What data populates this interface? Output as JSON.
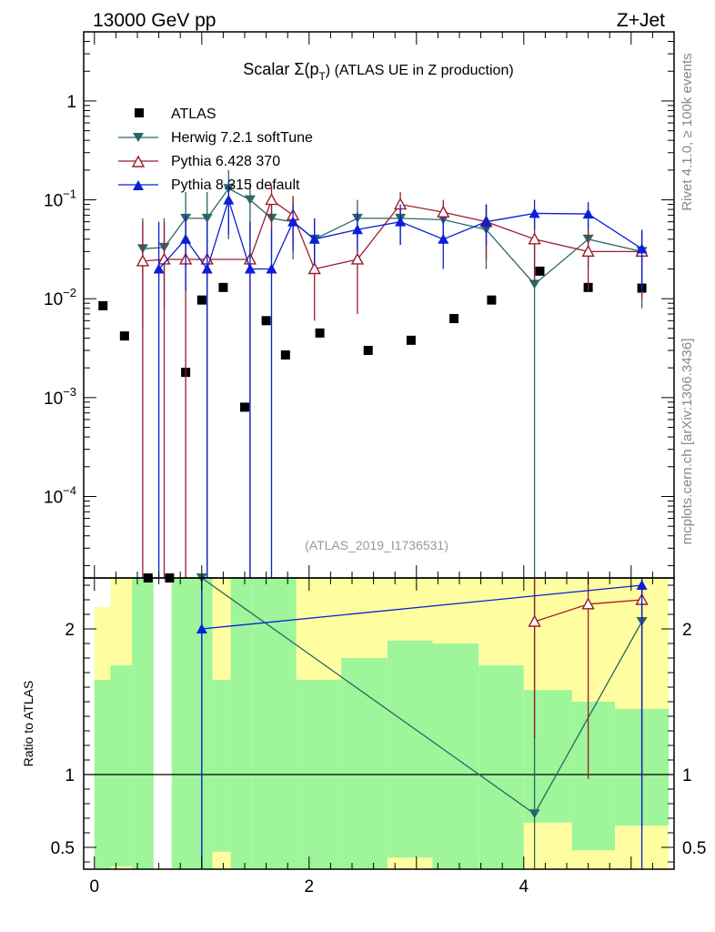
{
  "header": {
    "left": "13000 GeV pp",
    "right": "Z+Jet"
  },
  "side": {
    "top": "Rivet 4.1.0, ≥ 100k events",
    "bottom": "mcplots.cern.ch [arXiv:1306.3436]"
  },
  "colors": {
    "atlas": "#000000",
    "herwig": "#2a6666",
    "pythia6": "#9b1c2e",
    "pythia8": "#0a1fd6",
    "green": "#9ef59a",
    "yellow": "#fefea0"
  },
  "chart_data": {
    "type": "scatter",
    "title": "Scalar Σ(p_T) (ATLAS UE in Z production)",
    "title_main": "Scalar Σ(p",
    "title_sub": "T",
    "title_rest": ") (ATLAS UE in Z production)",
    "watermark": "(ATLAS_2019_I1736531)",
    "xlim": [
      -0.1,
      5.4
    ],
    "ylim": [
      1.5e-05,
      5
    ],
    "y_ticks": [
      {
        "v": 1,
        "base": "1",
        "exp": ""
      },
      {
        "v": 0.1,
        "base": "10",
        "exp": "−1"
      },
      {
        "v": 0.01,
        "base": "10",
        "exp": "−2"
      },
      {
        "v": 0.001,
        "base": "10",
        "exp": "−3"
      },
      {
        "v": 0.0001,
        "base": "10",
        "exp": "−4"
      }
    ],
    "x_ticks": [
      0,
      2,
      4
    ],
    "ratio": {
      "ylabel": "Ratio to ATLAS",
      "ylim": [
        0.35,
        2.35
      ],
      "y_ticks": [
        0.5,
        1,
        2
      ],
      "x_ticks_labels": [
        "0",
        "2",
        "4"
      ],
      "bins": [
        0.0,
        0.15,
        0.35,
        0.55,
        0.72,
        0.9,
        1.1,
        1.27,
        1.47,
        1.65,
        1.88,
        2.3,
        2.73,
        3.15,
        3.58,
        4.0,
        4.45,
        4.85,
        5.35
      ],
      "green": [
        [
          0.35,
          1.65
        ],
        [
          0.37,
          1.75
        ],
        [
          0.35,
          2.35
        ],
        [
          null,
          null
        ],
        [
          0.35,
          2.35
        ],
        [
          0.35,
          2.35
        ],
        [
          0.35,
          1.65
        ],
        [
          0.35,
          2.35
        ],
        [
          0.35,
          2.35
        ],
        [
          0.35,
          2.35
        ],
        [
          0.35,
          1.65
        ],
        [
          0.35,
          1.8
        ],
        [
          0.35,
          1.92
        ],
        [
          0.35,
          1.9
        ],
        [
          0.35,
          1.75
        ],
        [
          0.35,
          1.58
        ],
        [
          0.35,
          1.5
        ],
        [
          0.35,
          1.45
        ],
        [
          0.35,
          1.4
        ]
      ],
      "yellow": [
        [
          0.35,
          2.15
        ],
        [
          0.35,
          2.35
        ],
        [
          0.35,
          2.35
        ],
        [
          null,
          null
        ],
        [
          0.35,
          2.35
        ],
        [
          0.35,
          2.35
        ],
        [
          0.35,
          2.35
        ],
        [
          0.35,
          2.35
        ],
        [
          0.35,
          2.35
        ],
        [
          0.35,
          2.35
        ],
        [
          0.35,
          2.35
        ],
        [
          0.35,
          2.35
        ],
        [
          0.35,
          2.35
        ],
        [
          0.35,
          2.35
        ],
        [
          0.35,
          2.35
        ],
        [
          0.35,
          2.35
        ],
        [
          0.35,
          2.35
        ],
        [
          0.35,
          2.35
        ],
        [
          0.35,
          2.35
        ]
      ],
      "yellow_low": [
        0.35,
        0.35,
        0.35,
        null,
        0.35,
        0.35,
        0.47,
        0.35,
        0.35,
        0.35,
        0.35,
        0.35,
        0.43,
        0.35,
        0.35,
        0.67,
        0.48,
        0.65,
        0.35
      ],
      "series": [
        {
          "name": "Herwig 7.2.1 softTune",
          "x": [
            1.0,
            4.1,
            5.1
          ],
          "y": [
            2.35,
            0.73,
            2.05
          ],
          "err": [
            [
              0.35,
              2.35
            ],
            [
              0.35,
              2.35
            ],
            [
              0.63,
              2.35
            ]
          ]
        },
        {
          "name": "Pythia 6.428 370",
          "x": [
            4.1,
            4.6,
            5.1
          ],
          "y": [
            2.05,
            2.17,
            2.2
          ],
          "err": [
            [
              1.25,
              2.35
            ],
            [
              0.97,
              2.35
            ],
            [
              0.98,
              2.35
            ]
          ]
        },
        {
          "name": "Pythia 8.315 default",
          "x": [
            1.0,
            5.1
          ],
          "y": [
            2.0,
            2.3
          ],
          "err": [
            [
              0.35,
              2.35
            ],
            [
              0.35,
              2.35
            ]
          ]
        }
      ]
    },
    "series": [
      {
        "name": "ATLAS",
        "marker": "square",
        "x": [
          0.08,
          0.28,
          0.5,
          0.7,
          0.85,
          1.0,
          1.2,
          1.4,
          1.6,
          1.78,
          2.1,
          2.55,
          2.95,
          3.35,
          3.7,
          4.15,
          4.6,
          5.1
        ],
        "y": [
          0.0085,
          0.0042,
          1.1e-05,
          1.1e-05,
          0.0018,
          0.0097,
          0.013,
          0.0008,
          0.006,
          0.0027,
          0.0045,
          0.003,
          0.0038,
          0.0063,
          0.0097,
          0.019,
          0.013,
          0.0128
        ]
      },
      {
        "name": "Herwig 7.2.1 softTune",
        "marker": "triangle-down",
        "x": [
          0.45,
          0.65,
          0.85,
          1.05,
          1.25,
          1.45,
          1.65,
          1.85,
          2.05,
          2.45,
          2.85,
          3.25,
          3.65,
          4.1,
          4.6,
          5.1
        ],
        "y": [
          0.032,
          0.033,
          0.065,
          0.065,
          0.13,
          0.1,
          0.065,
          0.06,
          0.04,
          0.065,
          0.065,
          0.063,
          0.05,
          0.014,
          0.04,
          0.03
        ],
        "err": [
          [
            0.005,
            0.065
          ],
          [
            0.008,
            0.065
          ],
          [
            0.02,
            0.12
          ],
          [
            0.02,
            0.12
          ],
          [
            0.04,
            0.2
          ],
          [
            0.04,
            0.16
          ],
          [
            0.025,
            0.11
          ],
          [
            0.025,
            0.1
          ],
          [
            0.018,
            0.065
          ],
          [
            0.035,
            0.1
          ],
          [
            0.035,
            0.1
          ],
          [
            0.035,
            0.09
          ],
          [
            0.02,
            0.09
          ],
          [
            1e-05,
            0.04
          ],
          [
            0.02,
            0.065
          ],
          [
            0.008,
            0.048
          ]
        ]
      },
      {
        "name": "Pythia 6.428 370",
        "marker": "triangle-open",
        "x": [
          0.45,
          0.65,
          0.85,
          1.05,
          1.45,
          1.65,
          1.85,
          2.05,
          2.45,
          2.85,
          3.25,
          3.65,
          4.1,
          4.6,
          5.1
        ],
        "y": [
          0.024,
          0.025,
          0.025,
          0.025,
          0.025,
          0.1,
          0.07,
          0.02,
          0.025,
          0.09,
          0.075,
          0.06,
          0.04,
          0.03,
          0.03
        ],
        "err": [
          [
            1e-05,
            0.06
          ],
          [
            1e-05,
            0.06
          ],
          [
            1e-05,
            0.06
          ],
          [
            1e-05,
            0.06
          ],
          [
            1e-05,
            0.06
          ],
          [
            0.05,
            0.14
          ],
          [
            0.035,
            0.11
          ],
          [
            0.006,
            0.04
          ],
          [
            0.007,
            0.05
          ],
          [
            0.05,
            0.12
          ],
          [
            0.04,
            0.1
          ],
          [
            0.025,
            0.09
          ],
          [
            0.015,
            0.07
          ],
          [
            0.012,
            0.05
          ],
          [
            0.01,
            0.046
          ]
        ]
      },
      {
        "name": "Pythia 8.315 default",
        "marker": "triangle-up",
        "x": [
          0.6,
          0.85,
          1.05,
          1.25,
          1.45,
          1.65,
          1.85,
          2.05,
          2.45,
          2.85,
          3.25,
          3.65,
          4.1,
          4.6,
          5.1
        ],
        "y": [
          0.02,
          0.04,
          0.02,
          0.1,
          0.02,
          0.02,
          0.06,
          0.04,
          0.05,
          0.06,
          0.04,
          0.06,
          0.073,
          0.072,
          0.032
        ],
        "err": [
          [
            1e-05,
            0.06
          ],
          [
            0.012,
            0.07
          ],
          [
            1e-05,
            0.06
          ],
          [
            0.045,
            0.15
          ],
          [
            1e-05,
            0.06
          ],
          [
            1e-05,
            0.05
          ],
          [
            0.03,
            0.09
          ],
          [
            0.022,
            0.065
          ],
          [
            0.03,
            0.075
          ],
          [
            0.035,
            0.09
          ],
          [
            0.02,
            0.065
          ],
          [
            0.035,
            0.09
          ],
          [
            0.05,
            0.1
          ],
          [
            0.05,
            0.095
          ],
          [
            0.012,
            0.05
          ]
        ]
      }
    ]
  }
}
